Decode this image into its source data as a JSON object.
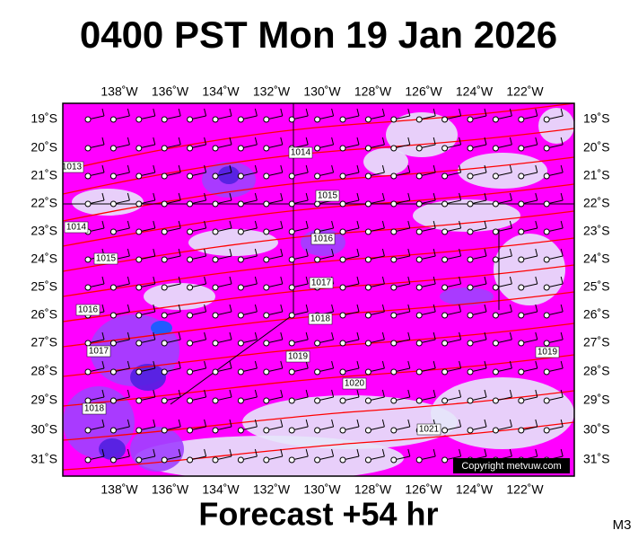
{
  "header": {
    "title": "0400 PST Mon 19 Jan 2026"
  },
  "footer": {
    "forecast": "Forecast +54 hr",
    "model": "M3"
  },
  "map": {
    "lon_labels": [
      "138˚W",
      "136˚W",
      "134˚W",
      "132˚W",
      "130˚W",
      "128˚W",
      "126˚W",
      "124˚W",
      "122˚W"
    ],
    "lat_labels": [
      "19˚S",
      "20˚S",
      "21˚S",
      "22˚S",
      "23˚S",
      "24˚S",
      "25˚S",
      "26˚S",
      "27˚S",
      "28˚S",
      "29˚S",
      "30˚S",
      "31˚S"
    ],
    "isobar_labels": [
      "1013",
      "1014",
      "1015",
      "1014",
      "1016",
      "1015",
      "1017",
      "1016",
      "1018",
      "1019",
      "1017",
      "1020",
      "1019",
      "1018",
      "1021"
    ],
    "copyright": "Copyright metvuw.com"
  }
}
